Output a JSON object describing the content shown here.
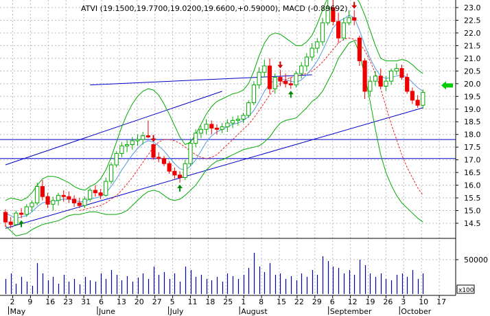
{
  "chart_data": {
    "type": "candlestick",
    "title": "ATVI (19.1500,19.7700,19.0200,19.6600,+0.59000), MACD (-0.89692)",
    "price_axis": {
      "ylim": [
        14.0,
        23.2
      ],
      "tick_labels": [
        "23.0",
        "22.5",
        "22.0",
        "21.5",
        "21.0",
        "20.5",
        "20.0",
        "19.5",
        "19.0",
        "18.5",
        "18.0",
        "17.5",
        "17.0",
        "16.5",
        "16.0",
        "15.5",
        "15.0",
        "14.5"
      ]
    },
    "volume_axis": {
      "ylim": [
        0,
        100000
      ],
      "tick_labels": [
        "50000"
      ],
      "unit_label": "x100"
    },
    "day_labels": [
      "2",
      "9",
      "16",
      "23",
      "31",
      "6",
      "13",
      "20",
      "27",
      "5",
      "11",
      "18",
      "25",
      "1",
      "8",
      "15",
      "22",
      "29",
      "6",
      "12",
      "19",
      "26",
      "3",
      "10",
      "17"
    ],
    "month_labels": [
      "May",
      "June",
      "July",
      "August",
      "September",
      "October"
    ],
    "grid": true,
    "colors": {
      "up": "#00aa00",
      "down": "#ee0000",
      "ma_short": "#5599dd",
      "ma_long": "#ee2222",
      "bollinger": "#00aa00",
      "trendline": "#0000cc",
      "signal_arrow_up": "#008800",
      "signal_arrow_down": "#cc0000",
      "current_price_arrow": "#00cc00",
      "grid": "#bbbbbb"
    },
    "ohlc": [
      [
        14.93,
        15.05,
        14.35,
        14.55
      ],
      [
        14.55,
        14.75,
        14.3,
        14.45
      ],
      [
        14.45,
        15.0,
        14.4,
        14.9
      ],
      [
        14.9,
        15.1,
        14.7,
        14.85
      ],
      [
        14.85,
        15.25,
        14.75,
        15.15
      ],
      [
        15.15,
        15.4,
        14.95,
        15.3
      ],
      [
        15.3,
        16.1,
        15.2,
        15.95
      ],
      [
        15.95,
        16.2,
        15.4,
        15.55
      ],
      [
        15.55,
        15.7,
        15.1,
        15.25
      ],
      [
        15.25,
        15.55,
        15.0,
        15.4
      ],
      [
        15.4,
        15.7,
        15.2,
        15.6
      ],
      [
        15.6,
        15.8,
        15.35,
        15.55
      ],
      [
        15.55,
        15.75,
        15.3,
        15.45
      ],
      [
        15.45,
        15.6,
        15.15,
        15.3
      ],
      [
        15.3,
        15.5,
        15.1,
        15.2
      ],
      [
        15.2,
        15.55,
        15.1,
        15.45
      ],
      [
        15.45,
        15.9,
        15.35,
        15.8
      ],
      [
        15.8,
        16.0,
        15.55,
        15.7
      ],
      [
        15.7,
        15.85,
        15.45,
        15.6
      ],
      [
        15.6,
        16.3,
        15.55,
        16.15
      ],
      [
        16.15,
        16.9,
        16.05,
        16.8
      ],
      [
        16.8,
        17.35,
        16.7,
        17.25
      ],
      [
        17.25,
        17.7,
        17.1,
        17.55
      ],
      [
        17.55,
        17.8,
        17.3,
        17.6
      ],
      [
        17.6,
        17.9,
        17.4,
        17.75
      ],
      [
        17.75,
        18.0,
        17.55,
        17.8
      ],
      [
        17.8,
        18.1,
        17.6,
        17.95
      ],
      [
        17.95,
        18.55,
        17.85,
        17.9
      ],
      [
        17.6,
        17.65,
        17.0,
        17.1
      ],
      [
        17.1,
        17.3,
        16.9,
        17.05
      ],
      [
        17.05,
        17.15,
        16.75,
        16.85
      ],
      [
        16.85,
        16.95,
        16.45,
        16.55
      ],
      [
        16.55,
        16.7,
        16.25,
        16.4
      ],
      [
        16.4,
        16.55,
        16.1,
        16.3
      ],
      [
        16.3,
        17.0,
        16.2,
        16.85
      ],
      [
        16.85,
        17.8,
        16.75,
        17.65
      ],
      [
        17.65,
        18.2,
        17.5,
        18.05
      ],
      [
        18.05,
        18.35,
        17.85,
        18.2
      ],
      [
        18.2,
        18.6,
        18.0,
        18.4
      ],
      [
        18.4,
        18.55,
        18.0,
        18.25
      ],
      [
        18.25,
        18.4,
        18.0,
        18.2
      ],
      [
        18.2,
        18.45,
        18.05,
        18.3
      ],
      [
        18.3,
        18.6,
        18.1,
        18.45
      ],
      [
        18.45,
        18.7,
        18.25,
        18.55
      ],
      [
        18.55,
        18.75,
        18.35,
        18.6
      ],
      [
        18.6,
        18.85,
        18.45,
        18.75
      ],
      [
        18.75,
        19.35,
        18.65,
        19.25
      ],
      [
        19.25,
        20.1,
        19.15,
        19.95
      ],
      [
        19.95,
        20.65,
        19.8,
        20.45
      ],
      [
        20.45,
        20.95,
        20.25,
        20.7
      ],
      [
        20.7,
        21.0,
        19.6,
        19.8
      ],
      [
        19.8,
        20.4,
        19.6,
        20.25
      ],
      [
        20.25,
        20.55,
        19.9,
        20.1
      ],
      [
        20.1,
        20.4,
        19.85,
        20.0
      ],
      [
        20.0,
        20.25,
        19.8,
        19.95
      ],
      [
        19.95,
        20.5,
        19.85,
        20.4
      ],
      [
        20.4,
        20.85,
        20.2,
        20.7
      ],
      [
        20.7,
        21.2,
        20.5,
        21.05
      ],
      [
        21.05,
        21.6,
        20.9,
        21.4
      ],
      [
        21.4,
        21.8,
        21.2,
        21.65
      ],
      [
        21.65,
        22.6,
        21.5,
        22.4
      ],
      [
        22.4,
        23.3,
        22.3,
        23.0
      ],
      [
        23.0,
        23.3,
        22.3,
        22.45
      ],
      [
        22.45,
        22.8,
        21.6,
        21.8
      ],
      [
        21.8,
        22.6,
        21.7,
        22.4
      ],
      [
        22.4,
        22.9,
        22.3,
        22.6
      ],
      [
        22.6,
        22.9,
        22.3,
        22.5
      ],
      [
        21.8,
        21.9,
        20.7,
        20.9
      ],
      [
        20.9,
        21.0,
        19.4,
        19.7
      ],
      [
        19.7,
        20.3,
        19.5,
        20.1
      ],
      [
        20.1,
        20.5,
        19.9,
        20.3
      ],
      [
        20.3,
        20.6,
        19.8,
        19.9
      ],
      [
        19.9,
        20.3,
        19.7,
        20.1
      ],
      [
        20.1,
        20.6,
        19.95,
        20.5
      ],
      [
        20.5,
        20.8,
        20.35,
        20.6
      ],
      [
        20.6,
        20.75,
        20.15,
        20.25
      ],
      [
        20.25,
        20.4,
        19.6,
        19.7
      ],
      [
        19.7,
        19.85,
        19.2,
        19.35
      ],
      [
        19.35,
        19.55,
        19.05,
        19.15
      ],
      [
        19.15,
        19.77,
        19.02,
        19.66
      ]
    ],
    "volume": [
      22000,
      30000,
      15000,
      25000,
      18000,
      12000,
      45000,
      30000,
      20000,
      25000,
      15000,
      28000,
      18000,
      22000,
      14000,
      25000,
      20000,
      18000,
      30000,
      22000,
      35000,
      28000,
      20000,
      26000,
      18000,
      24000,
      30000,
      22000,
      40000,
      28000,
      32000,
      22000,
      30000,
      18000,
      40000,
      35000,
      25000,
      28000,
      22000,
      20000,
      25000,
      18000,
      30000,
      26000,
      22000,
      28000,
      38000,
      60000,
      40000,
      32000,
      45000,
      28000,
      30000,
      22000,
      26000,
      20000,
      30000,
      25000,
      35000,
      28000,
      55000,
      48000,
      40000,
      38000,
      30000,
      35000,
      28000,
      50000,
      42000,
      30000,
      25000,
      30000,
      22000,
      20000,
      28000,
      30000,
      25000,
      35000,
      22000,
      30000
    ],
    "annotations": [
      {
        "type": "arrow-down",
        "bar": 28
      },
      {
        "type": "arrow-up",
        "bar": 33
      },
      {
        "type": "arrow-up",
        "bar": 3
      },
      {
        "type": "arrow-down",
        "bar": 52
      },
      {
        "type": "arrow-up",
        "bar": 54
      },
      {
        "type": "arrow-down",
        "bar": 66
      },
      {
        "type": "current-price-arrow",
        "price": 19.93
      }
    ],
    "trendlines": [
      {
        "from": [
          0,
          16.8
        ],
        "to": [
          41,
          19.7
        ]
      },
      {
        "from": [
          0,
          14.3
        ],
        "to": [
          79,
          19.05
        ]
      },
      {
        "from": [
          16,
          19.95
        ],
        "to": [
          58,
          20.35
        ]
      }
    ],
    "horizontal_lines": [
      17.8,
      17.05
    ],
    "price_series": {
      "ma_short": [
        14.9,
        14.8,
        14.7,
        14.75,
        14.8,
        14.95,
        15.15,
        15.3,
        15.35,
        15.35,
        15.4,
        15.45,
        15.45,
        15.4,
        15.35,
        15.35,
        15.45,
        15.5,
        15.55,
        15.7,
        15.95,
        16.25,
        16.6,
        16.9,
        17.2,
        17.45,
        17.65,
        17.75,
        17.7,
        17.55,
        17.35,
        17.1,
        16.85,
        16.65,
        16.6,
        16.75,
        17.0,
        17.35,
        17.7,
        17.95,
        18.1,
        18.2,
        18.3,
        18.4,
        18.45,
        18.55,
        18.7,
        18.95,
        19.3,
        19.7,
        20.0,
        20.15,
        20.2,
        20.15,
        20.1,
        20.05,
        20.15,
        20.35,
        20.6,
        20.9,
        21.3,
        21.75,
        22.2,
        22.45,
        22.55,
        22.7,
        22.6,
        22.1,
        21.5,
        21.0,
        20.6,
        20.3,
        20.2,
        20.25,
        20.3,
        20.35,
        20.25,
        20.05,
        19.85,
        19.7
      ],
      "ma_long_start": 14,
      "ma_long": [
        15.0,
        15.05,
        15.1,
        15.15,
        15.2,
        15.3,
        15.45,
        15.6,
        15.8,
        16.05,
        16.3,
        16.6,
        16.9,
        17.2,
        17.5,
        17.7,
        17.8,
        17.8,
        17.75,
        17.65,
        17.5,
        17.35,
        17.2,
        17.1,
        17.05,
        17.1,
        17.2,
        17.4,
        17.6,
        17.8,
        18.0,
        18.2,
        18.4,
        18.65,
        18.95,
        19.25,
        19.55,
        19.8,
        20.0,
        20.15,
        20.25,
        20.3,
        20.35,
        20.4,
        20.5,
        20.65,
        20.85,
        21.1,
        21.35,
        21.6,
        21.75,
        21.8,
        21.75,
        21.6,
        21.3,
        20.9,
        20.4,
        19.8,
        19.1,
        18.4,
        17.8,
        17.2,
        16.7,
        16.3,
        15.9,
        15.6
      ],
      "boll_upper": [
        15.4,
        15.5,
        15.45,
        15.4,
        15.5,
        15.7,
        16.0,
        16.25,
        16.35,
        16.35,
        16.3,
        16.2,
        16.1,
        15.95,
        15.85,
        15.8,
        15.95,
        16.05,
        16.25,
        16.6,
        17.1,
        17.7,
        18.3,
        18.8,
        19.2,
        19.5,
        19.7,
        19.8,
        19.75,
        19.55,
        19.2,
        18.8,
        18.35,
        17.9,
        17.6,
        17.7,
        18.0,
        18.4,
        18.8,
        19.1,
        19.3,
        19.4,
        19.5,
        19.6,
        19.65,
        19.75,
        20.0,
        20.5,
        21.1,
        21.6,
        21.9,
        22.0,
        21.95,
        21.8,
        21.65,
        21.5,
        21.5,
        21.65,
        21.9,
        22.35,
        22.9,
        23.4,
        23.8,
        23.9,
        23.85,
        23.75,
        23.5,
        23.2,
        22.7,
        22.1,
        21.5,
        21.0,
        20.9,
        20.9,
        20.9,
        20.95,
        20.9,
        20.75,
        20.55,
        20.4
      ],
      "boll_lower": [
        14.4,
        14.2,
        14.0,
        14.05,
        14.1,
        14.25,
        14.35,
        14.45,
        14.5,
        14.55,
        14.6,
        14.7,
        14.8,
        14.85,
        14.85,
        14.9,
        14.95,
        14.95,
        14.9,
        14.85,
        14.85,
        14.85,
        14.9,
        15.0,
        15.2,
        15.4,
        15.6,
        15.75,
        15.8,
        15.75,
        15.6,
        15.45,
        15.4,
        15.45,
        15.6,
        15.8,
        16.0,
        16.3,
        16.6,
        16.8,
        16.95,
        17.0,
        17.1,
        17.2,
        17.3,
        17.4,
        17.45,
        17.5,
        17.55,
        17.7,
        17.9,
        18.2,
        18.45,
        18.55,
        18.6,
        18.65,
        18.85,
        19.05,
        19.3,
        19.45,
        19.7,
        20.1,
        20.5,
        21.0,
        21.3,
        21.6,
        21.7,
        21.2,
        20.3,
        19.3,
        18.2,
        17.2,
        16.5,
        16.0,
        15.6,
        15.3,
        15.1,
        14.9,
        14.7,
        14.55
      ]
    }
  }
}
